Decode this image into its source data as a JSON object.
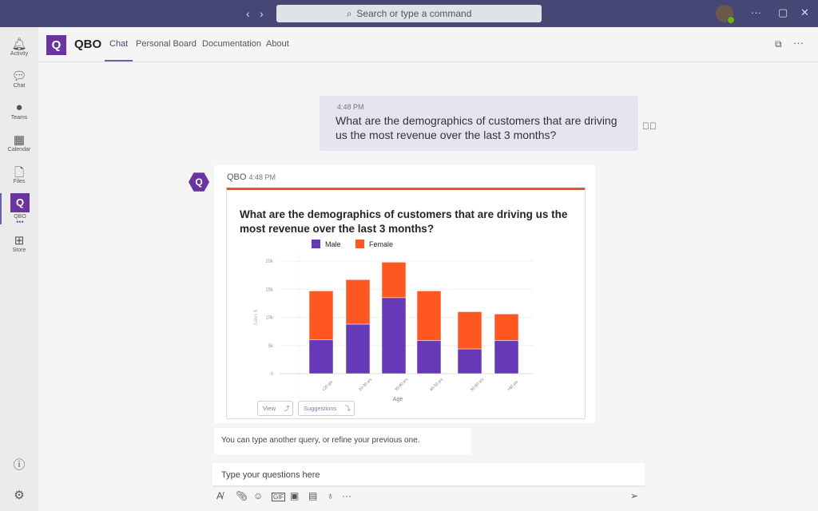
{
  "titlebar": {
    "search_placeholder": "Search or type a command"
  },
  "rail": [
    {
      "label": "Activity",
      "icon": "bell-icon"
    },
    {
      "label": "Chat",
      "icon": "chat-icon"
    },
    {
      "label": "Teams",
      "icon": "teams-icon"
    },
    {
      "label": "Calendar",
      "icon": "calendar-icon"
    },
    {
      "label": "Files",
      "icon": "files-icon"
    },
    {
      "label": "QBO",
      "icon": "qbo-icon"
    },
    {
      "label": "Store",
      "icon": "store-icon"
    }
  ],
  "header": {
    "app": "QBO",
    "logo": "Q",
    "tabs": [
      "Chat",
      "Personal Board",
      "Documentation",
      "About"
    ]
  },
  "user_message": {
    "time": "4:48 PM",
    "text": "What are the demographics of customers that are driving us the most revenue over the last 3 months?"
  },
  "bot_message": {
    "sender": "QBO",
    "time": "4:48 PM",
    "view_label": "View",
    "suggestions_label": "Suggestions"
  },
  "chart_data": {
    "type": "bar",
    "stacked": true,
    "title": "What are the demographics of customers that are driving us the most revenue over the last 3 months?",
    "xlabel": "Age",
    "ylabel": "Sales $",
    "categories": [
      "<20 yrs",
      "20-30 yrs",
      "30-40 yrs",
      "40-50 yrs",
      "50-60 yrs",
      ">60 yrs"
    ],
    "series": [
      {
        "name": "Male",
        "color": "#6639b7",
        "values": [
          6000,
          8800,
          13500,
          5900,
          4400,
          5900
        ]
      },
      {
        "name": "Female",
        "color": "#ff5722",
        "values": [
          8700,
          7900,
          6300,
          8800,
          6600,
          4700
        ]
      }
    ],
    "ylim": [
      0,
      20000
    ],
    "yticks": [
      {
        "v": 0,
        "label": "0"
      },
      {
        "v": 5000,
        "label": "5k"
      },
      {
        "v": 10000,
        "label": "10k"
      },
      {
        "v": 15000,
        "label": "15k"
      },
      {
        "v": 20000,
        "label": "20k"
      }
    ],
    "legend": "top"
  },
  "hint": "You can type another query, or refine your previous one.",
  "compose": {
    "placeholder": "Type your questions here"
  }
}
